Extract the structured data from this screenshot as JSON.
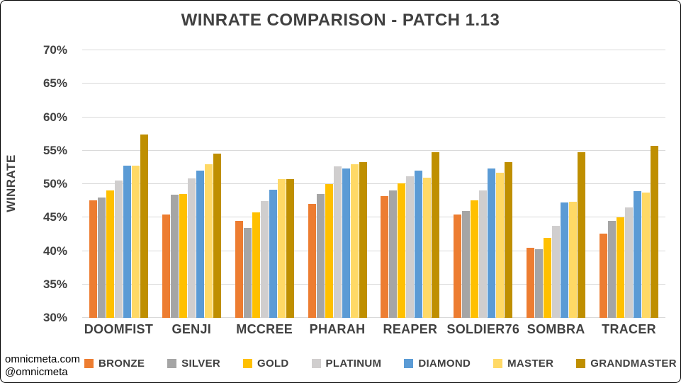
{
  "watermark": {
    "line1": "omnicmeta.com",
    "line2": "@omnicmeta"
  },
  "chart_data": {
    "type": "bar",
    "title": "WINRATE COMPARISON - PATCH 1.13",
    "xlabel": "",
    "ylabel": "WINRATE",
    "ylim": [
      30,
      70
    ],
    "ytick_step": 5,
    "ytick_format": "percent",
    "grid": true,
    "legend_position": "bottom",
    "categories": [
      "DOOMFIST",
      "GENJI",
      "MCCREE",
      "PHARAH",
      "REAPER",
      "SOLDIER76",
      "SOMBRA",
      "TRACER"
    ],
    "series": [
      {
        "name": "BRONZE",
        "color": "#ED7D31",
        "values": [
          47.6,
          45.5,
          44.5,
          47.0,
          48.2,
          45.5,
          40.5,
          42.6
        ]
      },
      {
        "name": "SILVER",
        "color": "#A5A5A5",
        "values": [
          48.0,
          48.4,
          43.4,
          48.5,
          49.0,
          46.0,
          40.3,
          44.5
        ]
      },
      {
        "name": "GOLD",
        "color": "#FFC000",
        "values": [
          49.1,
          48.5,
          45.8,
          50.0,
          50.1,
          47.6,
          42.0,
          45.0
        ]
      },
      {
        "name": "PLATINUM",
        "color": "#D0CECE",
        "values": [
          50.5,
          50.8,
          47.5,
          52.6,
          51.2,
          49.1,
          43.8,
          46.5
        ]
      },
      {
        "name": "DIAMOND",
        "color": "#5B9BD5",
        "values": [
          52.8,
          52.0,
          49.2,
          52.3,
          52.0,
          52.3,
          47.2,
          48.9
        ]
      },
      {
        "name": "MASTER",
        "color": "#FFD966",
        "values": [
          52.8,
          53.0,
          50.7,
          53.0,
          51.0,
          51.7,
          47.4,
          48.7
        ]
      },
      {
        "name": "GRANDMASTER",
        "color": "#BF8F00",
        "values": [
          57.4,
          54.5,
          50.7,
          53.3,
          54.8,
          53.3,
          54.8,
          55.7
        ]
      }
    ]
  }
}
